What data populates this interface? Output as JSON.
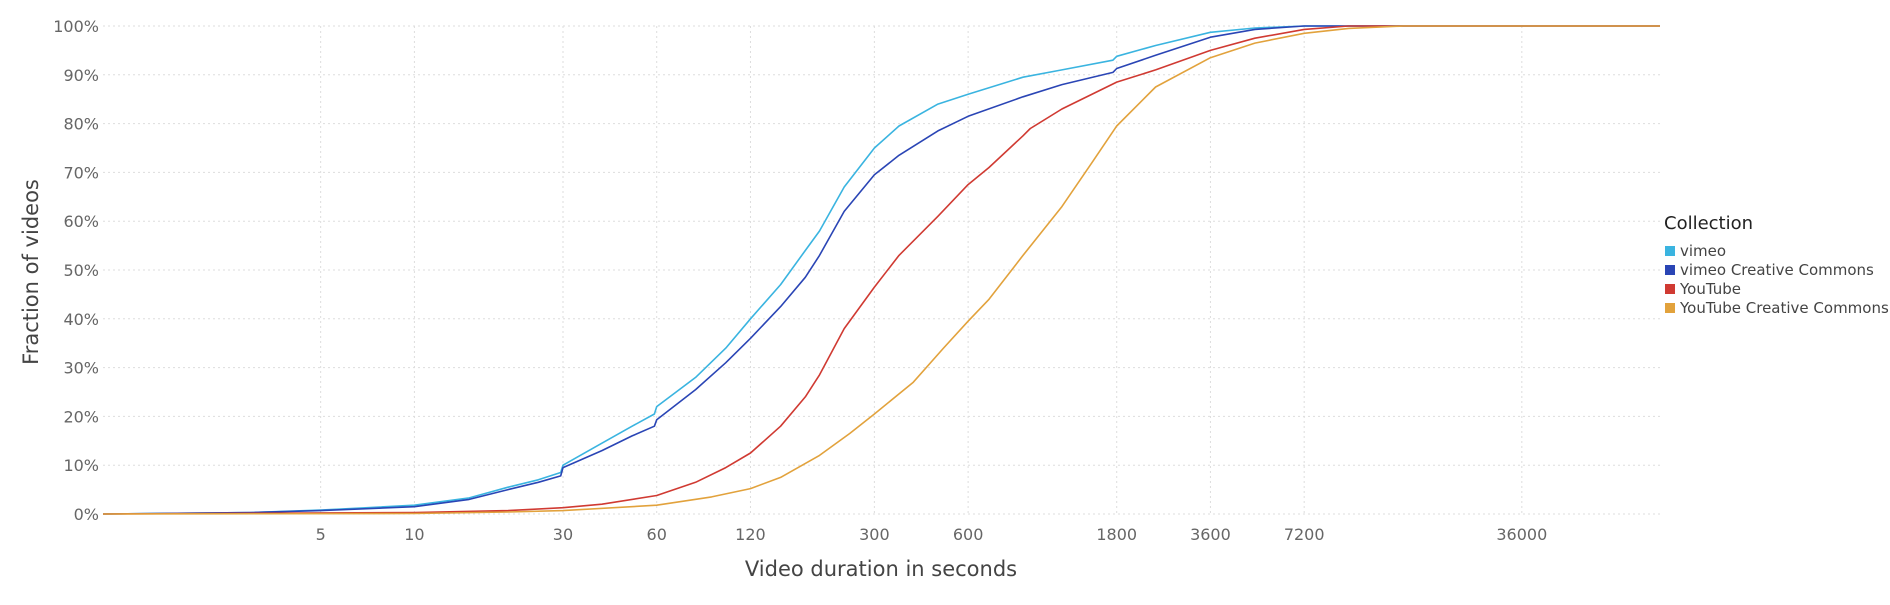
{
  "chart_data": {
    "type": "line",
    "title": "",
    "xlabel": "Video duration in seconds",
    "ylabel": "Fraction of videos",
    "x_scale": "log",
    "xlim": [
      1,
      100000
    ],
    "ylim": [
      0,
      100
    ],
    "grid": true,
    "legend_position": "right",
    "x_ticks": [
      5,
      10,
      30,
      60,
      120,
      300,
      600,
      1800,
      3600,
      7200,
      36000
    ],
    "x_tick_labels": [
      "5",
      "10",
      "30",
      "60",
      "120",
      "300",
      "600",
      "1800",
      "3600",
      "7200",
      "36000"
    ],
    "y_ticks": [
      0,
      10,
      20,
      30,
      40,
      50,
      60,
      70,
      80,
      90,
      100
    ],
    "y_tick_labels": [
      "0%",
      "10%",
      "20%",
      "30%",
      "40%",
      "50%",
      "60%",
      "70%",
      "80%",
      "90%",
      "100%"
    ],
    "legend_title": "Collection",
    "series": [
      {
        "name": "vimeo",
        "color": "#3ab4e0",
        "points": [
          [
            1,
            0
          ],
          [
            3,
            0.3
          ],
          [
            5,
            0.8
          ],
          [
            10,
            1.8
          ],
          [
            15,
            3.3
          ],
          [
            20,
            5.5
          ],
          [
            25,
            7
          ],
          [
            29.5,
            8.5
          ],
          [
            30,
            10
          ],
          [
            40,
            14.5
          ],
          [
            50,
            18
          ],
          [
            59,
            20.5
          ],
          [
            60,
            22
          ],
          [
            80,
            28
          ],
          [
            100,
            34
          ],
          [
            120,
            40
          ],
          [
            150,
            47
          ],
          [
            180,
            54
          ],
          [
            200,
            58
          ],
          [
            240,
            67
          ],
          [
            300,
            75
          ],
          [
            360,
            79.5
          ],
          [
            480,
            84
          ],
          [
            600,
            86
          ],
          [
            900,
            89.5
          ],
          [
            1200,
            91
          ],
          [
            1750,
            93
          ],
          [
            1800,
            93.8
          ],
          [
            2400,
            96
          ],
          [
            3600,
            98.7
          ],
          [
            5000,
            99.6
          ],
          [
            7200,
            100
          ],
          [
            100000,
            100
          ]
        ]
      },
      {
        "name": "vimeo Creative Commons",
        "color": "#2a45b5",
        "points": [
          [
            1,
            0
          ],
          [
            3,
            0.3
          ],
          [
            5,
            0.7
          ],
          [
            10,
            1.5
          ],
          [
            15,
            3
          ],
          [
            20,
            5
          ],
          [
            25,
            6.5
          ],
          [
            29.5,
            7.8
          ],
          [
            30,
            9.5
          ],
          [
            40,
            13
          ],
          [
            50,
            16
          ],
          [
            59,
            18
          ],
          [
            60,
            19.3
          ],
          [
            80,
            25.5
          ],
          [
            100,
            31
          ],
          [
            120,
            36
          ],
          [
            150,
            42.5
          ],
          [
            180,
            48.5
          ],
          [
            200,
            53
          ],
          [
            240,
            62
          ],
          [
            300,
            69.5
          ],
          [
            360,
            73.5
          ],
          [
            480,
            78.5
          ],
          [
            600,
            81.5
          ],
          [
            900,
            85.5
          ],
          [
            1200,
            88
          ],
          [
            1750,
            90.5
          ],
          [
            1800,
            91.3
          ],
          [
            2400,
            94
          ],
          [
            3600,
            97.7
          ],
          [
            5000,
            99.3
          ],
          [
            7200,
            100
          ],
          [
            100000,
            100
          ]
        ]
      },
      {
        "name": "YouTube",
        "color": "#d03a32",
        "points": [
          [
            1,
            0
          ],
          [
            10,
            0.3
          ],
          [
            20,
            0.7
          ],
          [
            30,
            1.3
          ],
          [
            40,
            2
          ],
          [
            60,
            3.8
          ],
          [
            80,
            6.5
          ],
          [
            100,
            9.5
          ],
          [
            120,
            12.5
          ],
          [
            150,
            18
          ],
          [
            180,
            24
          ],
          [
            200,
            28.5
          ],
          [
            240,
            38
          ],
          [
            300,
            46.5
          ],
          [
            360,
            53
          ],
          [
            480,
            61
          ],
          [
            600,
            67.5
          ],
          [
            700,
            71
          ],
          [
            900,
            77.5
          ],
          [
            950,
            79
          ],
          [
            1200,
            83
          ],
          [
            1800,
            88.5
          ],
          [
            2400,
            91
          ],
          [
            3600,
            95
          ],
          [
            5000,
            97.5
          ],
          [
            7200,
            99.3
          ],
          [
            10000,
            100
          ],
          [
            100000,
            100
          ]
        ]
      },
      {
        "name": "YouTube Creative Commons",
        "color": "#e2a23c",
        "points": [
          [
            1,
            0
          ],
          [
            10,
            0.1
          ],
          [
            20,
            0.4
          ],
          [
            30,
            0.7
          ],
          [
            60,
            1.8
          ],
          [
            90,
            3.5
          ],
          [
            120,
            5.2
          ],
          [
            150,
            7.5
          ],
          [
            200,
            12
          ],
          [
            250,
            16.5
          ],
          [
            300,
            20.5
          ],
          [
            400,
            27
          ],
          [
            500,
            34
          ],
          [
            600,
            39.5
          ],
          [
            700,
            44
          ],
          [
            900,
            53
          ],
          [
            1200,
            63
          ],
          [
            1500,
            72
          ],
          [
            1800,
            79.5
          ],
          [
            2400,
            87.5
          ],
          [
            3600,
            93.5
          ],
          [
            5000,
            96.5
          ],
          [
            7200,
            98.5
          ],
          [
            10000,
            99.5
          ],
          [
            15000,
            100
          ],
          [
            100000,
            100
          ]
        ]
      }
    ]
  }
}
